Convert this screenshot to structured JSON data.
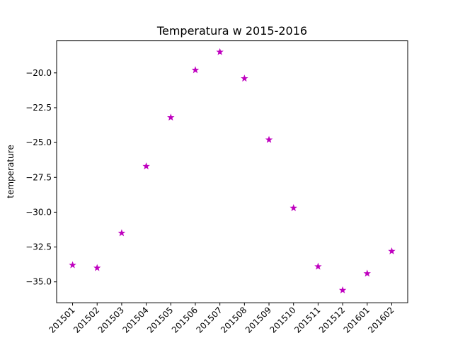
{
  "chart_data": {
    "type": "scatter",
    "title": "Temperatura w 2015-2016",
    "xlabel": "",
    "ylabel": "temperature",
    "categories": [
      "201501",
      "201502",
      "201503",
      "201504",
      "201505",
      "201506",
      "201507",
      "201508",
      "201509",
      "201510",
      "201511",
      "201512",
      "201601",
      "201602"
    ],
    "values": [
      -33.8,
      -34.0,
      -31.5,
      -26.7,
      -23.2,
      -19.8,
      -18.5,
      -20.4,
      -24.8,
      -29.7,
      -33.9,
      -35.6,
      -34.4,
      -32.8
    ],
    "marker": "star",
    "marker_color": "#bf00bf",
    "ylim": [
      -36.5,
      -17.7
    ],
    "yticks": [
      -35.0,
      -32.5,
      -30.0,
      -27.5,
      -25.0,
      -22.5,
      -20.0
    ],
    "ytick_labels": [
      "−35.0",
      "−32.5",
      "−30.0",
      "−27.5",
      "−25.0",
      "−22.5",
      "−20.0"
    ],
    "xtick_rotation": 45,
    "grid": false,
    "legend": false
  }
}
